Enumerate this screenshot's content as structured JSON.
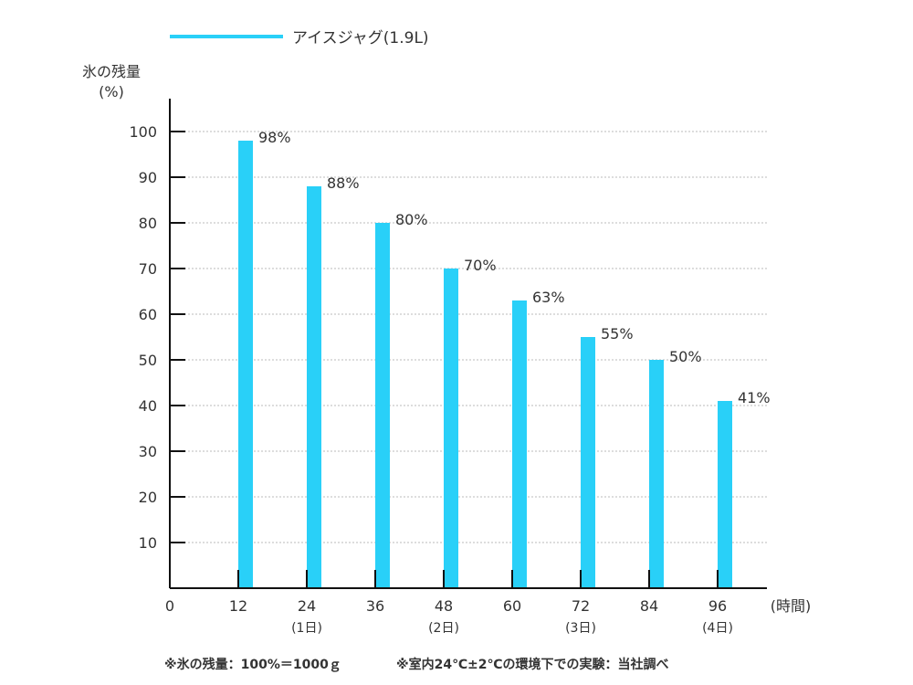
{
  "chart_data": {
    "type": "bar",
    "title": "",
    "series": [
      {
        "name": "アイスジャグ(1.9L)",
        "color": "#29d0f8",
        "x": [
          12,
          24,
          36,
          48,
          60,
          72,
          84,
          96
        ],
        "values": [
          98,
          88,
          80,
          70,
          63,
          55,
          50,
          41
        ]
      }
    ],
    "data_labels": [
      "98%",
      "88%",
      "80%",
      "70%",
      "63%",
      "55%",
      "50%",
      "41%"
    ],
    "ylabel_line1": "氷の残量",
    "ylabel_line2": "(%)",
    "xlabel": "(時間)",
    "xticks": [
      "0",
      "12",
      "24",
      "36",
      "48",
      "60",
      "72",
      "84",
      "96"
    ],
    "xtick_sublabels": {
      "24": "(1日)",
      "48": "(2日)",
      "72": "(3日)",
      "96": "(4日)"
    },
    "yticks": [
      "10",
      "20",
      "30",
      "40",
      "50",
      "60",
      "70",
      "80",
      "90",
      "100"
    ],
    "ylim": [
      0,
      100
    ],
    "xlim": [
      0,
      96
    ],
    "grid": "horizontal dotted",
    "legend_placement": "top-left"
  },
  "footnotes": [
    "※氷の残量：100%＝1000ｇ",
    "※室内24℃±2℃の環境下での実験：当社調べ"
  ]
}
